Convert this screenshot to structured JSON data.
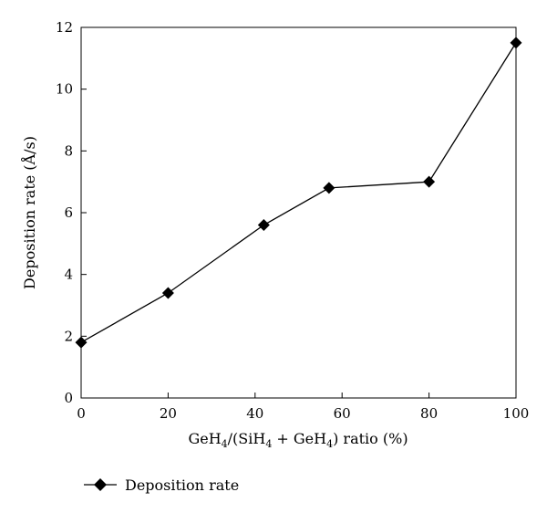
{
  "chart_data": {
    "type": "line",
    "x": [
      0,
      20,
      42,
      57,
      80,
      100
    ],
    "series": [
      {
        "name": "Deposition rate",
        "values": [
          1.8,
          3.4,
          5.6,
          6.8,
          7.0,
          11.5
        ],
        "color": "#000000",
        "marker": "diamond"
      }
    ],
    "xlabel": {
      "p1": "GeH",
      "s1": "4",
      "p2": "/(SiH",
      "s2": "4",
      "p3": " + GeH",
      "s3": "4",
      "p4": ") ratio (%)"
    },
    "ylabel": "Deposition rate (Å/s)",
    "xlim": [
      0,
      100
    ],
    "ylim": [
      0,
      12
    ],
    "xticks": [
      "0",
      "20",
      "40",
      "60",
      "80",
      "100"
    ],
    "yticks": [
      "0",
      "2",
      "4",
      "6",
      "8",
      "10",
      "12"
    ],
    "grid": false,
    "legend": {
      "position": "bottom-left",
      "label": "Deposition rate"
    }
  }
}
